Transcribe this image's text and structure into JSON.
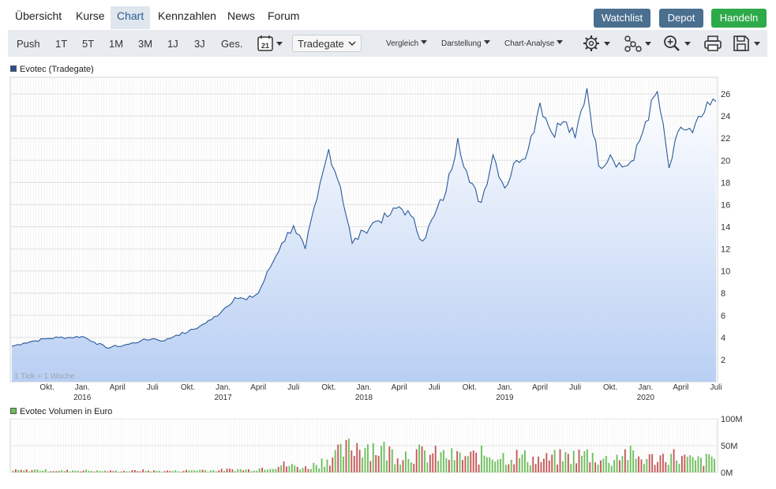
{
  "nav": {
    "tabs": [
      "Übersicht",
      "Kurse",
      "Chart",
      "Kennzahlen",
      "News",
      "Forum"
    ],
    "active": "Chart",
    "buttons": {
      "watchlist": "Watchlist",
      "depot": "Depot",
      "handeln": "Handeln"
    }
  },
  "colors": {
    "watchlist": "#4a6f8f",
    "depot": "#4a6f8f",
    "handeln": "#2eaa4a",
    "line": "#2a5a9a",
    "area": "#b8d0f4",
    "vol_up": "#6cbf5a",
    "vol_down": "#c65454"
  },
  "toolbar": {
    "ranges": [
      "Push",
      "1T",
      "5T",
      "1M",
      "3M",
      "1J",
      "3J",
      "Ges."
    ],
    "calendar_day": "21",
    "exchange": "Tradegate",
    "menus": [
      "Vergleich",
      "Darstellung",
      "Chart-Analyse"
    ]
  },
  "chart_data": [
    {
      "type": "area",
      "legend": "Evotec (Tradegate)",
      "note": "1 Tick = 1 Woche",
      "ylim": [
        0,
        27.5
      ],
      "y_ticks": [
        "2",
        "4",
        "6",
        "8",
        "10",
        "12",
        "14",
        "16",
        "18",
        "20",
        "22",
        "24",
        "26"
      ],
      "x_tick_labels": [
        "Okt.",
        "Jan.",
        "April",
        "Juli",
        "Okt.",
        "Jan.",
        "April",
        "Juli",
        "Okt.",
        "Jan.",
        "April",
        "Juli",
        "Okt.",
        "Jan.",
        "April",
        "Juli",
        "Okt.",
        "Jan.",
        "April",
        "Juli"
      ],
      "x_year_labels": [
        "2016",
        "2017",
        "2018",
        "2019",
        "2020"
      ],
      "x_range": [
        "2015-07",
        "2020-07"
      ],
      "series": [
        {
          "points": [
            [
              "2015-07",
              3.2
            ],
            [
              "2015-08",
              3.5
            ],
            [
              "2015-09",
              3.7
            ],
            [
              "2015-10",
              3.9
            ],
            [
              "2015-11",
              4.0
            ],
            [
              "2015-12",
              4.0
            ],
            [
              "2016-01",
              4.1
            ],
            [
              "2016-02",
              3.6
            ],
            [
              "2016-03",
              3.1
            ],
            [
              "2016-04",
              3.2
            ],
            [
              "2016-05",
              3.4
            ],
            [
              "2016-06",
              3.7
            ],
            [
              "2016-07",
              3.9
            ],
            [
              "2016-08",
              3.7
            ],
            [
              "2016-09",
              4.2
            ],
            [
              "2016-10",
              4.5
            ],
            [
              "2016-11",
              5.0
            ],
            [
              "2016-12",
              5.6
            ],
            [
              "2017-01",
              6.5
            ],
            [
              "2017-02",
              7.6
            ],
            [
              "2017-03",
              7.4
            ],
            [
              "2017-04",
              8.0
            ],
            [
              "2017-05",
              10.3
            ],
            [
              "2017-06",
              12.5
            ],
            [
              "2017-07",
              14.1
            ],
            [
              "2017-08",
              12.0
            ],
            [
              "2017-09",
              16.5
            ],
            [
              "2017-10",
              21.0
            ],
            [
              "2017-11",
              17.6
            ],
            [
              "2017-12",
              12.5
            ],
            [
              "2018-01",
              13.6
            ],
            [
              "2018-02",
              14.5
            ],
            [
              "2018-03",
              14.9
            ],
            [
              "2018-04",
              15.8
            ],
            [
              "2018-05",
              15.0
            ],
            [
              "2018-06",
              12.7
            ],
            [
              "2018-07",
              15.0
            ],
            [
              "2018-08",
              17.2
            ],
            [
              "2018-09",
              22.0
            ],
            [
              "2018-10",
              18.0
            ],
            [
              "2018-11",
              16.2
            ],
            [
              "2018-12",
              20.5
            ],
            [
              "2019-01",
              17.5
            ],
            [
              "2019-02",
              20.0
            ],
            [
              "2019-03",
              21.0
            ],
            [
              "2019-04",
              25.2
            ],
            [
              "2019-05",
              22.5
            ],
            [
              "2019-06",
              23.5
            ],
            [
              "2019-07",
              22.0
            ],
            [
              "2019-08",
              26.5
            ],
            [
              "2019-09",
              19.5
            ],
            [
              "2019-10",
              20.5
            ],
            [
              "2019-11",
              19.4
            ],
            [
              "2019-12",
              20.0
            ],
            [
              "2020-01",
              23.5
            ],
            [
              "2020-02",
              26.2
            ],
            [
              "2020-03",
              19.3
            ],
            [
              "2020-04",
              23.0
            ],
            [
              "2020-05",
              22.5
            ],
            [
              "2020-06",
              24.3
            ],
            [
              "2020-07",
              25.3
            ]
          ]
        }
      ]
    },
    {
      "type": "bar",
      "legend": "Evotec Volumen in Euro",
      "ylim": [
        0,
        100
      ],
      "y_ticks": [
        "0M",
        "50M",
        "100M"
      ],
      "unit": "M",
      "x_range": [
        "2015-07",
        "2020-07"
      ],
      "series": [
        {
          "values": [
            4,
            4,
            5,
            4,
            3,
            4,
            4,
            3,
            3,
            3,
            3,
            4,
            3,
            3,
            3,
            4,
            5,
            4,
            5,
            6,
            5,
            8,
            12,
            15,
            12,
            9,
            18,
            30,
            38,
            52,
            56,
            48,
            40,
            35,
            38,
            35,
            34,
            32,
            30,
            30,
            34,
            36,
            30,
            32,
            28,
            24,
            28,
            30,
            32,
            36,
            26,
            24,
            40,
            30,
            26,
            28,
            34,
            28,
            22,
            24,
            30
          ]
        }
      ]
    }
  ]
}
